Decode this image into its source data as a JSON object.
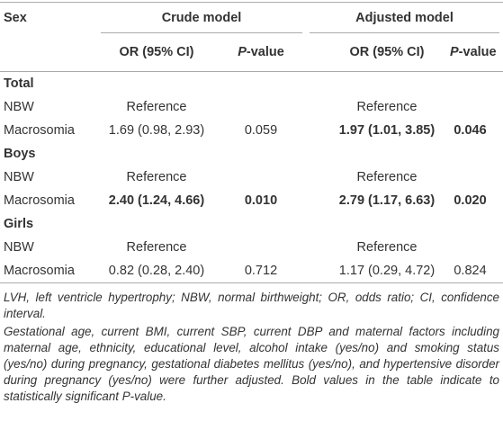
{
  "table": {
    "header": {
      "group": [
        "Sex",
        "Crude model",
        "Adjusted model"
      ],
      "sub": [
        "OR (95% CI)",
        "P-value",
        "OR (95% CI)",
        "P-value"
      ]
    },
    "sections": [
      {
        "title": "Total",
        "rows": [
          {
            "label": "NBW",
            "crude": {
              "or": "Reference"
            },
            "adjusted": {
              "or": "Reference"
            }
          },
          {
            "label": "Macrosomia",
            "crude": {
              "or": "1.69 (0.98, 2.93)",
              "p": "0.059",
              "bold": false
            },
            "adjusted": {
              "or": "1.97 (1.01, 3.85)",
              "p": "0.046",
              "bold": true
            }
          }
        ]
      },
      {
        "title": "Boys",
        "rows": [
          {
            "label": "NBW",
            "crude": {
              "or": "Reference"
            },
            "adjusted": {
              "or": "Reference"
            }
          },
          {
            "label": "Macrosomia",
            "crude": {
              "or": "2.40 (1.24, 4.66)",
              "p": "0.010",
              "bold": true
            },
            "adjusted": {
              "or": "2.79 (1.17, 6.63)",
              "p": "0.020",
              "bold": true
            }
          }
        ]
      },
      {
        "title": "Girls",
        "rows": [
          {
            "label": "NBW",
            "crude": {
              "or": "Reference"
            },
            "adjusted": {
              "or": "Reference"
            }
          },
          {
            "label": "Macrosomia",
            "crude": {
              "or": "0.82 (0.28, 2.40)",
              "p": "0.712",
              "bold": false
            },
            "adjusted": {
              "or": "1.17 (0.29, 4.72)",
              "p": "0.824",
              "bold": false
            }
          }
        ]
      }
    ],
    "footnotes": [
      "LVH, left ventricle hypertrophy; NBW, normal birthweight; OR, odds ratio; CI, confidence interval.",
      "Gestational age, current BMI, current SBP, current DBP and maternal factors including maternal age, ethnicity, educational level, alcohol intake (yes/no) and smoking status (yes/no) during pregnancy, gestational diabetes mellitus (yes/no), and hypertensive disorder during pregnancy (yes/no) were further adjusted. Bold values in the table indicate to statistically significant P-value."
    ]
  }
}
